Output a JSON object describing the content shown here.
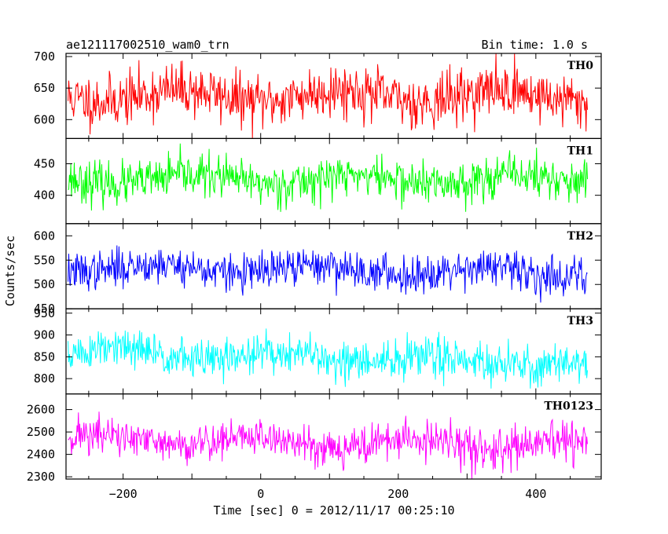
{
  "chart_data": {
    "type": "line",
    "title_left": "ae121117002510_wam0_trn",
    "title_right": "Bin time: 1.0 s",
    "xlabel": "Time [sec] 0 = 2012/11/17 00:25:10",
    "ylabel": "Counts/sec",
    "xlim": [
      -283,
      495
    ],
    "x_range": [
      -280,
      475
    ],
    "bin_time": 1.0,
    "x_ticks": [
      -200,
      0,
      200,
      400
    ],
    "panels": [
      {
        "name": "TH0",
        "color": "#ff0000",
        "ylim": [
          570,
          705
        ],
        "y_ticks": [
          600,
          650,
          700
        ],
        "mean": 638,
        "amp": 38,
        "trend": 0,
        "seed": 11
      },
      {
        "name": "TH1",
        "color": "#00ff00",
        "ylim": [
          355,
          490
        ],
        "y_ticks": [
          400,
          450
        ],
        "mean": 425,
        "amp": 30,
        "trend": 0,
        "seed": 23
      },
      {
        "name": "TH2",
        "color": "#0000ff",
        "ylim": [
          450,
          625
        ],
        "y_ticks": [
          450,
          500,
          550,
          600
        ],
        "mean": 535,
        "amp": 35,
        "trend": -10,
        "seed": 37
      },
      {
        "name": "TH3",
        "color": "#00ffff",
        "ylim": [
          765,
          960
        ],
        "y_ticks": [
          800,
          850,
          900,
          950
        ],
        "mean": 860,
        "amp": 42,
        "trend": -25,
        "seed": 51
      },
      {
        "name": "TH0123",
        "color": "#ff00ff",
        "ylim": [
          2290,
          2670
        ],
        "y_ticks": [
          2300,
          2400,
          2500,
          2600
        ],
        "mean": 2470,
        "amp": 80,
        "trend": -35,
        "seed": 71
      }
    ]
  }
}
